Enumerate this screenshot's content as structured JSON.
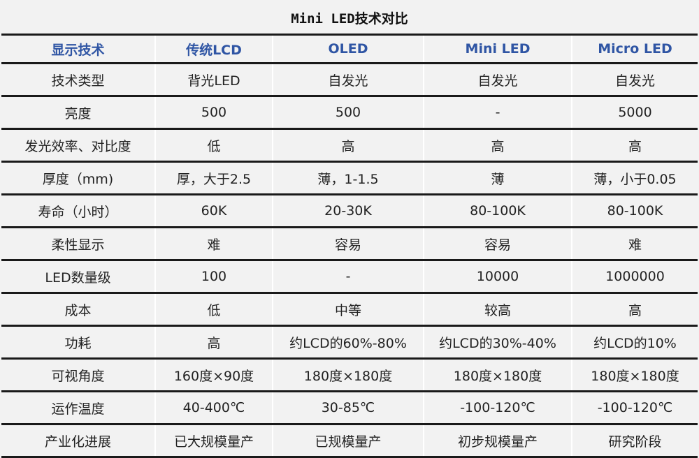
{
  "title": "Mini LED技术对比",
  "headers": [
    "显示技术",
    "传统LCD",
    "OLED",
    "Mini LED",
    "Micro LED"
  ],
  "rows": [
    [
      "技术类型",
      "背光LED",
      "自发光",
      "自发光",
      "自发光"
    ],
    [
      "亮度",
      "500",
      "500",
      "-",
      "5000"
    ],
    [
      "发光效率、对比度",
      "低",
      "高",
      "高",
      "高"
    ],
    [
      "厚度（mm)",
      "厚，大于2.5",
      "薄，1-1.5",
      "薄",
      "薄，小于0.05"
    ],
    [
      "寿命（小时）",
      "60K",
      "20-30K",
      "80-100K",
      "80-100K"
    ],
    [
      "柔性显示",
      "难",
      "容易",
      "容易",
      "难"
    ],
    [
      "LED数量级",
      "100",
      "-",
      "10000",
      "1000000"
    ],
    [
      "成本",
      "低",
      "中等",
      "较高",
      "高"
    ],
    [
      "功耗",
      "高",
      "约LCD的60%-80%",
      "约LCD的30%-40%",
      "约LCD的10%"
    ],
    [
      "可视角度",
      "160度×90度",
      "180度×180度",
      "180度×180度",
      "180度×180度"
    ],
    [
      "运作温度",
      "40-400℃",
      "30-85℃",
      "-100-120℃",
      "-100-120℃"
    ],
    [
      "产业化进展",
      "已大规模量产",
      "已规模量产",
      "初步规模量产",
      "研究阶段"
    ]
  ]
}
